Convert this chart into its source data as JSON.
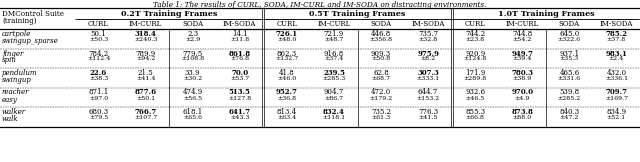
{
  "title": "Table 1: The results of CURL, SODA, IM-CURL and IM-SODA on distracting environments.",
  "header_top": [
    "0.2T Training Frames",
    "0.5T Training Frames",
    "1.0T Training Frames"
  ],
  "header_sub": [
    "CURL",
    "IM-CURL",
    "SODA",
    "IM-SODA"
  ],
  "rows": [
    {
      "name": [
        "cartpole",
        "swingup_sparse"
      ],
      "data": [
        [
          "50.1",
          "318.4",
          "2.3",
          "14.1",
          "726.1",
          "721.9",
          "446.8",
          "735.7",
          "744.2",
          "744.8",
          "645.0",
          "785.2"
        ],
        [
          "±50.3",
          "±240.3",
          "±2.9",
          "±11.8",
          "±48.0",
          "±48.7",
          "±356.8",
          "±32.8",
          "±23.8",
          "±54.2",
          "±322.6",
          "±37.8"
        ]
      ],
      "bold": [
        false,
        true,
        false,
        false,
        true,
        false,
        false,
        false,
        false,
        false,
        false,
        true
      ]
    },
    {
      "name": [
        "finger",
        "spin"
      ],
      "data": [
        [
          "784.2",
          "789.9",
          "779.5",
          "861.8",
          "862.3",
          "916.8",
          "909.3",
          "975.9",
          "920.9",
          "949.7",
          "937.1",
          "983.1"
        ],
        [
          "±112.4",
          "±94.2",
          "±108.8",
          "±76.8",
          "±132.7",
          "±37.4",
          "±50.8",
          "±8.2",
          "±124.8",
          "±39.4",
          "±35.3",
          "±2.4"
        ]
      ],
      "bold": [
        false,
        false,
        false,
        true,
        false,
        false,
        false,
        true,
        false,
        true,
        false,
        true
      ]
    },
    {
      "name": [
        "pendulum",
        "swingup"
      ],
      "data": [
        [
          "22.6",
          "21.5",
          "33.9",
          "70.0",
          "41.8",
          "239.5",
          "62.8",
          "307.3",
          "171.9",
          "780.3",
          "465.6",
          "432.0"
        ],
        [
          "±38.3",
          "±41.4",
          "±30.2",
          "±53.7",
          "±46.0",
          "±285.3",
          "±68.7",
          "±333.1",
          "±289.8",
          "±38.9",
          "±331.6",
          "±336.1"
        ]
      ],
      "bold": [
        true,
        false,
        false,
        true,
        false,
        true,
        false,
        true,
        false,
        true,
        false,
        false
      ]
    },
    {
      "name": [
        "reacher",
        "easy"
      ],
      "data": [
        [
          "871.1",
          "877.6",
          "474.9",
          "513.5",
          "952.7",
          "904.7",
          "472.0",
          "644.7",
          "932.6",
          "970.0",
          "539.8",
          "709.7"
        ],
        [
          "±97.0",
          "±50.1",
          "±56.5",
          "±127.8",
          "±36.8",
          "±86.7",
          "±179.2",
          "±153.2",
          "±46.5",
          "±4.9",
          "±285.2",
          "±169.7"
        ]
      ],
      "bold": [
        false,
        true,
        false,
        true,
        true,
        false,
        false,
        false,
        false,
        true,
        false,
        true
      ]
    },
    {
      "name": [
        "walker",
        "walk"
      ],
      "data": [
        [
          "680.3",
          "766.7",
          "618.1",
          "641.7",
          "813.4",
          "832.4",
          "735.2",
          "776.3",
          "855.3",
          "873.8",
          "840.3",
          "834.9"
        ],
        [
          "±79.5",
          "±107.7",
          "±65.6",
          "±43.3",
          "±63.4",
          "±118.1",
          "±61.3",
          "±41.5",
          "±66.8",
          "±88.0",
          "±47.2",
          "±52.1"
        ]
      ],
      "bold": [
        false,
        true,
        false,
        true,
        false,
        true,
        false,
        false,
        false,
        true,
        false,
        false
      ]
    }
  ]
}
